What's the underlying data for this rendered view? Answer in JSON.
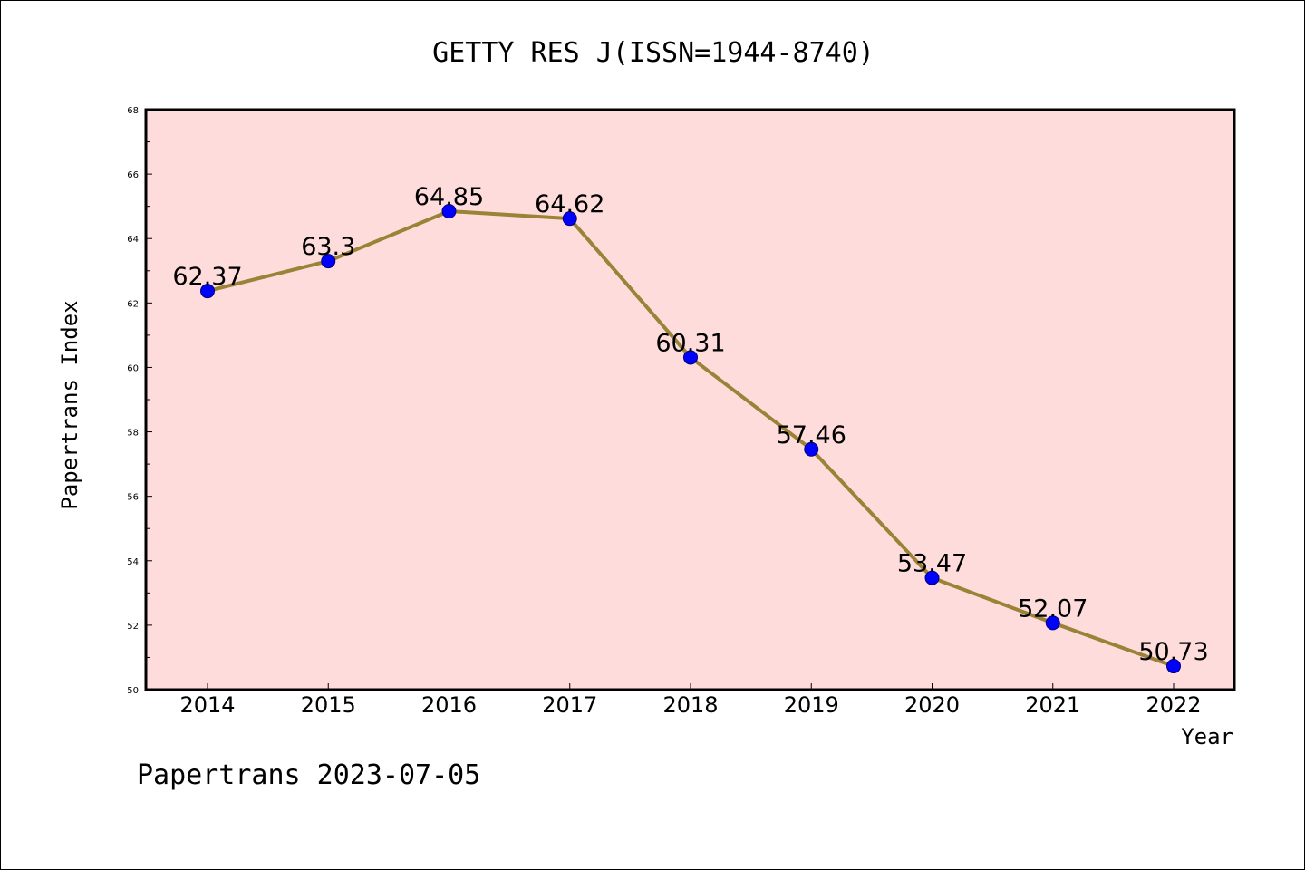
{
  "footer": "Papertrans 2023-07-05",
  "colors": {
    "plot_background": "#ffdcdc",
    "line": "#9a8236",
    "marker": "#0000ff",
    "frame": "#000000"
  },
  "chart_data": {
    "type": "line",
    "title": "GETTY RES J(ISSN=1944-8740)",
    "xlabel": "Year",
    "ylabel": "Papertrans Index",
    "categories": [
      "2014",
      "2015",
      "2016",
      "2017",
      "2018",
      "2019",
      "2020",
      "2021",
      "2022"
    ],
    "series": [
      {
        "values": [
          62.37,
          63.3,
          64.85,
          64.62,
          60.31,
          57.46,
          53.47,
          52.07,
          50.73
        ],
        "labels": [
          "62.37",
          "63.3",
          "64.85",
          "64.62",
          "60.31",
          "57.46",
          "53.47",
          "52.07",
          "50.73"
        ]
      }
    ],
    "ylim": [
      50,
      68
    ],
    "yticks": [
      "50",
      "52",
      "54",
      "56",
      "58",
      "60",
      "62",
      "64",
      "66",
      "68"
    ],
    "grid": false,
    "legend": "none"
  }
}
